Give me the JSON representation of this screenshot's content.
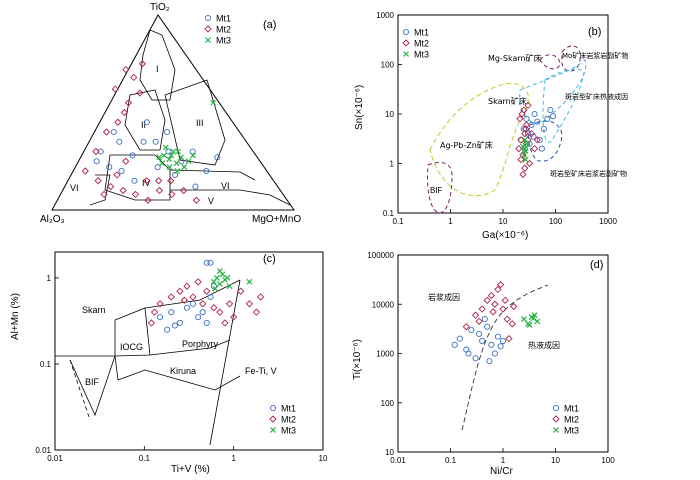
{
  "chart_data": [
    {
      "id": "a",
      "type": "ternary",
      "panel_label": "(a)",
      "apices": {
        "top": "TiO₂",
        "left": "Al₂O₃",
        "right": "MgO+MnO"
      },
      "fields": [
        "I",
        "II",
        "III",
        "IV",
        "V",
        "VI",
        "VI"
      ],
      "legend": [
        {
          "name": "Mt1",
          "marker": "circle",
          "color": "#3a6fc4"
        },
        {
          "name": "Mt2",
          "marker": "diamond",
          "color": "#b0224a"
        },
        {
          "name": "Mt3",
          "marker": "x",
          "color": "#26b340"
        }
      ],
      "series": [
        {
          "name": "Mt1",
          "points": [
            [
              0.2,
              0.25
            ],
            [
              0.22,
              0.3
            ],
            [
              0.3,
              0.2
            ],
            [
              0.35,
              0.28
            ],
            [
              0.45,
              0.22
            ],
            [
              0.5,
              0.3
            ],
            [
              0.4,
              0.35
            ],
            [
              0.55,
              0.25
            ],
            [
              0.6,
              0.3
            ],
            [
              0.3,
              0.35
            ],
            [
              0.25,
              0.22
            ],
            [
              0.5,
              0.4
            ],
            [
              0.42,
              0.45
            ],
            [
              0.65,
              0.2
            ],
            [
              0.7,
              0.27
            ],
            [
              0.52,
              0.18
            ],
            [
              0.35,
              0.15
            ],
            [
              0.6,
              0.12
            ],
            [
              0.28,
              0.4
            ],
            [
              0.45,
              0.35
            ]
          ]
        },
        {
          "name": "Mt2",
          "points": [
            [
              0.3,
              0.45
            ],
            [
              0.33,
              0.5
            ],
            [
              0.35,
              0.55
            ],
            [
              0.4,
              0.6
            ],
            [
              0.38,
              0.68
            ],
            [
              0.42,
              0.75
            ],
            [
              0.3,
              0.62
            ],
            [
              0.35,
              0.72
            ],
            [
              0.2,
              0.15
            ],
            [
              0.25,
              0.12
            ],
            [
              0.3,
              0.1
            ],
            [
              0.35,
              0.08
            ],
            [
              0.4,
              0.05
            ],
            [
              0.45,
              0.1
            ],
            [
              0.5,
              0.08
            ],
            [
              0.15,
              0.2
            ],
            [
              0.2,
              0.3
            ],
            [
              0.25,
              0.4
            ],
            [
              0.45,
              0.15
            ],
            [
              0.55,
              0.1
            ],
            [
              0.6,
              0.05
            ],
            [
              0.28,
              0.18
            ],
            [
              0.32,
              0.25
            ],
            [
              0.22,
              0.08
            ],
            [
              0.5,
              0.15
            ],
            [
              0.4,
              0.15
            ]
          ]
        },
        {
          "name": "Mt3",
          "points": [
            [
              0.48,
              0.28
            ],
            [
              0.5,
              0.26
            ],
            [
              0.52,
              0.3
            ],
            [
              0.47,
              0.24
            ],
            [
              0.55,
              0.27
            ],
            [
              0.5,
              0.22
            ],
            [
              0.53,
              0.24
            ],
            [
              0.49,
              0.32
            ],
            [
              0.58,
              0.25
            ],
            [
              0.56,
              0.22
            ],
            [
              0.51,
              0.28
            ],
            [
              0.54,
              0.3
            ],
            [
              0.46,
              0.27
            ],
            [
              0.53,
              0.2
            ],
            [
              0.6,
              0.28
            ],
            [
              0.7,
              0.55
            ]
          ]
        }
      ]
    },
    {
      "id": "b",
      "type": "scatter",
      "scale": "log-log",
      "panel_label": "(b)",
      "xlabel": "Ga(×10⁻⁶)",
      "ylabel": "Sn(×10⁻⁶)",
      "xlim": [
        0.1,
        1000
      ],
      "ylim": [
        0.1,
        1000
      ],
      "xticks": [
        "0.1",
        "1",
        "10",
        "100",
        "1000"
      ],
      "yticks": [
        "0.1",
        "1",
        "10",
        "100",
        "1000"
      ],
      "fields": [
        "Mg-Skarn矿床",
        "Mo矿床岩浆岩副矿物",
        "Skarn矿床",
        "斑岩型矿床热液成因",
        "Ag-Pb-Zn矿床",
        "斑岩型矿床岩浆岩副矿物",
        "BIF"
      ],
      "legend": [
        "Mt1",
        "Mt2",
        "Mt3"
      ],
      "series": [
        {
          "name": "Mt1",
          "points": [
            [
              22,
              3
            ],
            [
              25,
              5
            ],
            [
              28,
              8
            ],
            [
              30,
              4
            ],
            [
              35,
              6
            ],
            [
              40,
              10
            ],
            [
              45,
              7
            ],
            [
              50,
              3
            ],
            [
              60,
              5
            ],
            [
              70,
              8
            ],
            [
              80,
              12
            ],
            [
              90,
              9
            ],
            [
              26,
              2
            ],
            [
              32,
              2.5
            ],
            [
              38,
              3.5
            ],
            [
              55,
              2
            ]
          ]
        },
        {
          "name": "Mt2",
          "points": [
            [
              20,
              2
            ],
            [
              22,
              3
            ],
            [
              24,
              1.5
            ],
            [
              26,
              4
            ],
            [
              28,
              6
            ],
            [
              21,
              8
            ],
            [
              23,
              10
            ],
            [
              25,
              12
            ],
            [
              27,
              5
            ],
            [
              30,
              3
            ],
            [
              32,
              1
            ],
            [
              26,
              0.8
            ],
            [
              24,
              0.6
            ],
            [
              22,
              1.2
            ],
            [
              28,
              2.5
            ],
            [
              30,
              15
            ],
            [
              35,
              4
            ],
            [
              40,
              2
            ],
            [
              45,
              3
            ]
          ]
        },
        {
          "name": "Mt3",
          "points": [
            [
              25,
              1.5
            ],
            [
              26,
              2
            ],
            [
              27,
              1.8
            ],
            [
              28,
              2.5
            ],
            [
              24,
              2.2
            ],
            [
              26,
              3
            ],
            [
              27,
              1.2
            ]
          ]
        }
      ]
    },
    {
      "id": "c",
      "type": "scatter",
      "scale": "log-log",
      "panel_label": "(c)",
      "xlabel": "Ti+V (%)",
      "ylabel": "Al+Mn (%)",
      "xlim": [
        0.01,
        10
      ],
      "ylim": [
        0.01,
        2
      ],
      "xticks": [
        "0.01",
        "0.1",
        "1",
        "10"
      ],
      "yticks": [
        "0.01",
        "0.1",
        "1"
      ],
      "fields": [
        "Skarn",
        "IOCG",
        "Porphyry",
        "Kiruna",
        "BIF",
        "Fe-Ti, V"
      ],
      "legend": [
        "Mt1",
        "Mt2",
        "Mt3"
      ],
      "series": [
        {
          "name": "Mt1",
          "points": [
            [
              0.15,
              0.35
            ],
            [
              0.2,
              0.4
            ],
            [
              0.25,
              0.3
            ],
            [
              0.3,
              0.45
            ],
            [
              0.35,
              0.5
            ],
            [
              0.4,
              0.35
            ],
            [
              0.45,
              0.4
            ],
            [
              0.5,
              0.3
            ],
            [
              0.55,
              0.6
            ],
            [
              0.6,
              0.8
            ],
            [
              0.5,
              1.5
            ],
            [
              0.55,
              1.5
            ],
            [
              0.18,
              0.25
            ],
            [
              0.22,
              0.28
            ]
          ]
        },
        {
          "name": "Mt2",
          "points": [
            [
              0.12,
              0.3
            ],
            [
              0.15,
              0.5
            ],
            [
              0.2,
              0.6
            ],
            [
              0.25,
              0.7
            ],
            [
              0.3,
              0.8
            ],
            [
              0.35,
              0.6
            ],
            [
              0.4,
              0.9
            ],
            [
              0.45,
              0.5
            ],
            [
              0.5,
              0.7
            ],
            [
              0.7,
              0.4
            ],
            [
              0.8,
              0.3
            ],
            [
              1.0,
              0.35
            ],
            [
              1.5,
              0.5
            ],
            [
              2.0,
              0.6
            ],
            [
              1.8,
              0.4
            ],
            [
              0.9,
              0.5
            ],
            [
              0.13,
              0.4
            ],
            [
              0.28,
              0.55
            ],
            [
              0.6,
              0.45
            ],
            [
              1.2,
              0.7
            ]
          ]
        },
        {
          "name": "Mt3",
          "points": [
            [
              0.6,
              0.9
            ],
            [
              0.65,
              1.0
            ],
            [
              0.7,
              0.85
            ],
            [
              0.75,
              1.1
            ],
            [
              0.8,
              0.95
            ],
            [
              0.7,
              1.2
            ],
            [
              0.85,
              1.0
            ],
            [
              0.9,
              0.8
            ],
            [
              1.5,
              0.9
            ],
            [
              0.62,
              0.75
            ]
          ]
        }
      ]
    },
    {
      "id": "d",
      "type": "scatter",
      "scale": "log-log",
      "panel_label": "(d)",
      "xlabel": "Ni/Cr",
      "ylabel": "Ti(×10⁻⁶)",
      "xlim": [
        0.01,
        100
      ],
      "ylim": [
        10,
        100000
      ],
      "xticks": [
        "0.01",
        "0.1",
        "1",
        "10",
        "100"
      ],
      "yticks": [
        "10",
        "100",
        "1000",
        "10000",
        "100000"
      ],
      "fields": [
        "岩浆成因",
        "热液成因"
      ],
      "legend": [
        "Mt1",
        "Mt2",
        "Mt3"
      ],
      "series": [
        {
          "name": "Mt1",
          "points": [
            [
              0.12,
              1500
            ],
            [
              0.15,
              2000
            ],
            [
              0.2,
              1200
            ],
            [
              0.25,
              3000
            ],
            [
              0.3,
              800
            ],
            [
              0.35,
              2500
            ],
            [
              0.4,
              1800
            ],
            [
              0.45,
              5000
            ],
            [
              0.5,
              3500
            ],
            [
              0.6,
              1500
            ],
            [
              0.7,
              1000
            ],
            [
              0.8,
              2200
            ],
            [
              0.9,
              1400
            ],
            [
              1.0,
              1800
            ],
            [
              0.22,
              1000
            ],
            [
              0.55,
              700
            ]
          ]
        },
        {
          "name": "Mt2",
          "points": [
            [
              0.2,
              3500
            ],
            [
              0.3,
              6000
            ],
            [
              0.4,
              8000
            ],
            [
              0.5,
              12000
            ],
            [
              0.6,
              15000
            ],
            [
              0.7,
              10000
            ],
            [
              0.8,
              20000
            ],
            [
              1.0,
              8000
            ],
            [
              1.2,
              5000
            ],
            [
              1.5,
              4000
            ],
            [
              0.9,
              25000
            ],
            [
              1.1,
              12000
            ],
            [
              0.35,
              4500
            ],
            [
              0.65,
              7000
            ],
            [
              1.6,
              9000
            ],
            [
              1.3,
              2000
            ]
          ]
        },
        {
          "name": "Mt3",
          "points": [
            [
              2.5,
              5000
            ],
            [
              3.0,
              4000
            ],
            [
              3.5,
              5500
            ],
            [
              4.0,
              6000
            ],
            [
              4.5,
              4500
            ],
            [
              3.2,
              3800
            ],
            [
              3.8,
              5200
            ]
          ]
        }
      ]
    }
  ]
}
